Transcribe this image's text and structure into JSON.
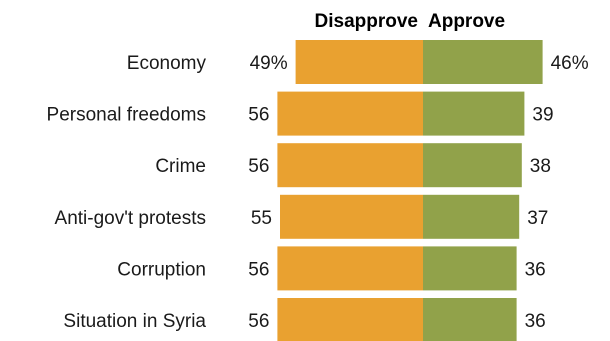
{
  "chart_data": {
    "type": "bar",
    "orientation": "horizontal-diverging",
    "categories": [
      "Economy",
      "Personal freedoms",
      "Crime",
      "Anti-gov't protests",
      "Corruption",
      "Situation in Syria"
    ],
    "series": [
      {
        "name": "Disapprove",
        "values": [
          49,
          56,
          56,
          55,
          56,
          56
        ],
        "color": "#e9a130"
      },
      {
        "name": "Approve",
        "values": [
          46,
          39,
          38,
          37,
          36,
          36
        ],
        "color": "#91a24a"
      }
    ],
    "value_labels": {
      "Disapprove": [
        "49%",
        "56",
        "56",
        "55",
        "56",
        "56"
      ],
      "Approve": [
        "46%",
        "39",
        "38",
        "37",
        "36",
        "36"
      ]
    },
    "legend": "top",
    "grid": false
  }
}
